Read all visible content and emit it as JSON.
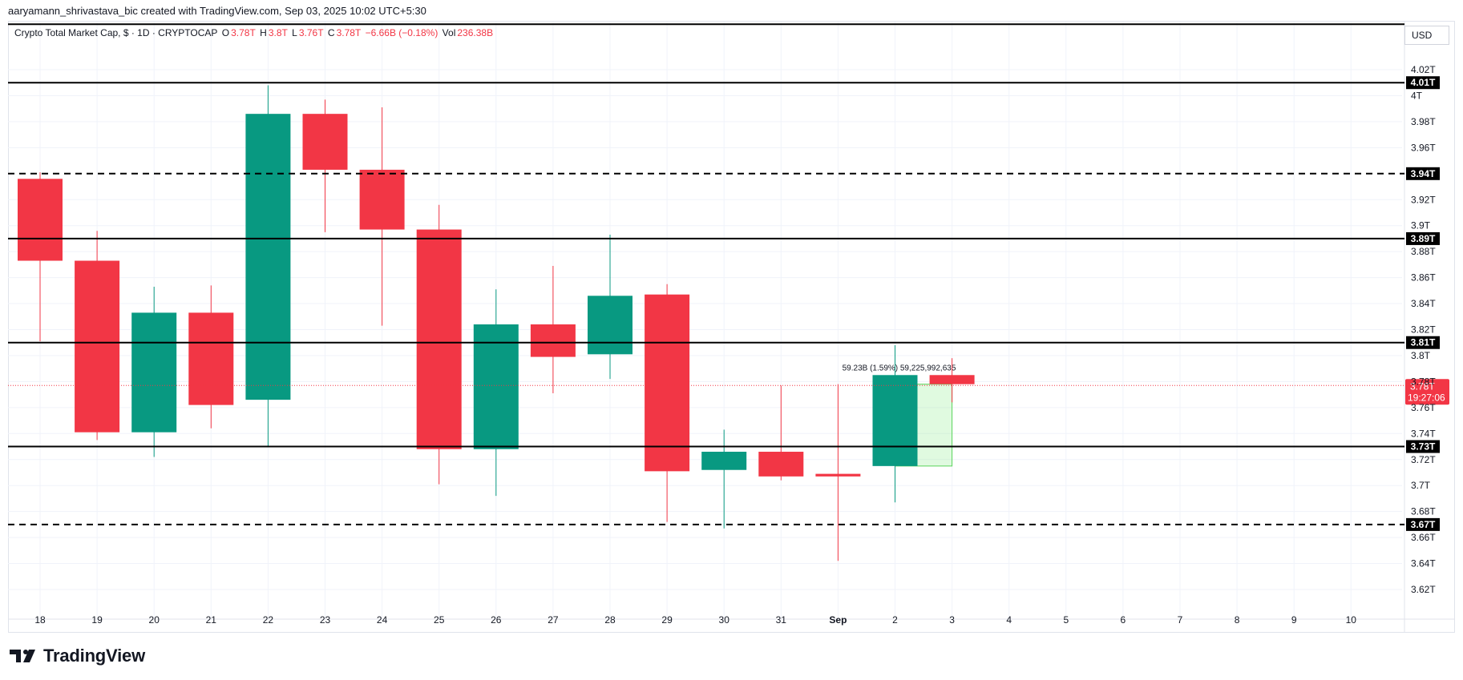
{
  "header": {
    "attribution": "aaryamann_shrivastava_bic created with TradingView.com, Sep 03, 2025 10:02 UTC+5:30"
  },
  "legend": {
    "symbol": "Crypto Total Market Cap, $ · 1D · CRYPTOCAP",
    "o_label": "O",
    "o_value": "3.78T",
    "h_label": "H",
    "h_value": "3.8T",
    "l_label": "L",
    "l_value": "3.76T",
    "c_label": "C",
    "c_value": "3.78T",
    "change": "−6.66B (−0.18%)",
    "vol_label": "Vol",
    "vol_value": "236.38B"
  },
  "currency_button": "USD",
  "brand": "TradingView",
  "measure_label": "59.23B (1.59%) 59,225,992,635",
  "price_badge": {
    "value": "3.78T",
    "countdown": "19:27:06"
  },
  "colors": {
    "up": "#089981",
    "down": "#f23645",
    "grid": "#f0f3fa",
    "text": "#131722"
  },
  "chart_data": {
    "type": "candlestick",
    "title": "Crypto Total Market Cap, $ · 1D · CRYPTOCAP",
    "unit": "T",
    "ylim": [
      3.605,
      4.035
    ],
    "y_ticks": [
      {
        "v": 4.02,
        "label": "4.02T"
      },
      {
        "v": 4.0,
        "label": "4T"
      },
      {
        "v": 3.98,
        "label": "3.98T"
      },
      {
        "v": 3.96,
        "label": "3.96T"
      },
      {
        "v": 3.92,
        "label": "3.92T"
      },
      {
        "v": 3.9,
        "label": "3.9T"
      },
      {
        "v": 3.88,
        "label": "3.88T"
      },
      {
        "v": 3.86,
        "label": "3.86T"
      },
      {
        "v": 3.84,
        "label": "3.84T"
      },
      {
        "v": 3.82,
        "label": "3.82T"
      },
      {
        "v": 3.8,
        "label": "3.8T"
      },
      {
        "v": 3.78,
        "label": "3.78T"
      },
      {
        "v": 3.76,
        "label": "3.76T"
      },
      {
        "v": 3.74,
        "label": "3.74T"
      },
      {
        "v": 3.72,
        "label": "3.72T"
      },
      {
        "v": 3.7,
        "label": "3.7T"
      },
      {
        "v": 3.68,
        "label": "3.68T"
      },
      {
        "v": 3.66,
        "label": "3.66T"
      },
      {
        "v": 3.64,
        "label": "3.64T"
      },
      {
        "v": 3.62,
        "label": "3.62T"
      }
    ],
    "x_labels": [
      "18",
      "19",
      "20",
      "21",
      "22",
      "23",
      "24",
      "25",
      "26",
      "27",
      "28",
      "29",
      "30",
      "31",
      "Sep",
      "2",
      "3",
      "4",
      "5",
      "6",
      "7",
      "8",
      "9",
      "10"
    ],
    "candles": [
      {
        "x": "18",
        "o": 3.936,
        "h": 3.941,
        "l": 3.811,
        "c": 3.873
      },
      {
        "x": "19",
        "o": 3.873,
        "h": 3.896,
        "l": 3.735,
        "c": 3.741
      },
      {
        "x": "20",
        "o": 3.741,
        "h": 3.853,
        "l": 3.722,
        "c": 3.833
      },
      {
        "x": "21",
        "o": 3.833,
        "h": 3.854,
        "l": 3.744,
        "c": 3.762
      },
      {
        "x": "22",
        "o": 3.766,
        "h": 4.008,
        "l": 3.73,
        "c": 3.986
      },
      {
        "x": "23",
        "o": 3.986,
        "h": 3.997,
        "l": 3.895,
        "c": 3.943
      },
      {
        "x": "24",
        "o": 3.943,
        "h": 3.991,
        "l": 3.823,
        "c": 3.897
      },
      {
        "x": "25",
        "o": 3.897,
        "h": 3.916,
        "l": 3.701,
        "c": 3.728
      },
      {
        "x": "26",
        "o": 3.728,
        "h": 3.851,
        "l": 3.692,
        "c": 3.824
      },
      {
        "x": "27",
        "o": 3.824,
        "h": 3.869,
        "l": 3.771,
        "c": 3.799
      },
      {
        "x": "28",
        "o": 3.801,
        "h": 3.893,
        "l": 3.782,
        "c": 3.846
      },
      {
        "x": "29",
        "o": 3.847,
        "h": 3.855,
        "l": 3.672,
        "c": 3.711
      },
      {
        "x": "30",
        "o": 3.712,
        "h": 3.743,
        "l": 3.667,
        "c": 3.726
      },
      {
        "x": "31",
        "o": 3.726,
        "h": 3.777,
        "l": 3.704,
        "c": 3.707
      },
      {
        "x": "Sep",
        "o": 3.709,
        "h": 3.778,
        "l": 3.642,
        "c": 3.707
      },
      {
        "x": "2",
        "o": 3.715,
        "h": 3.808,
        "l": 3.687,
        "c": 3.785
      },
      {
        "x": "3",
        "o": 3.785,
        "h": 3.798,
        "l": 3.764,
        "c": 3.778
      }
    ],
    "levels": [
      {
        "value": 4.01,
        "label": "4.01T",
        "style": "solid"
      },
      {
        "value": 3.94,
        "label": "3.94T",
        "style": "dashed"
      },
      {
        "value": 3.89,
        "label": "3.89T",
        "style": "solid"
      },
      {
        "value": 3.81,
        "label": "3.81T",
        "style": "solid"
      },
      {
        "value": 3.73,
        "label": "3.73T",
        "style": "solid"
      },
      {
        "value": 3.67,
        "label": "3.67T",
        "style": "dashed"
      }
    ],
    "top_line": 4.055,
    "current_price": 3.777,
    "measure": {
      "from_x": "2",
      "to_x": "3",
      "low": 3.715,
      "high": 3.778,
      "text": "59.23B (1.59%) 59,225,992,635"
    },
    "grid": true
  }
}
